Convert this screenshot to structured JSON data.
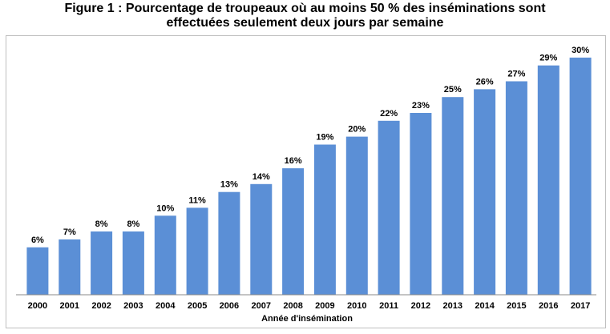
{
  "chart_data": {
    "type": "bar",
    "title_line1": "Figure 1 : Pourcentage de troupeaux où au moins 50 % des inséminations sont",
    "title_line2": "effectuées seulement deux jours par semaine",
    "xlabel": "Année d'insémination",
    "ylabel": "",
    "ylim": [
      0,
      31
    ],
    "grid": false,
    "bar_color": "#5b8fd6",
    "categories": [
      "2000",
      "2001",
      "2002",
      "2003",
      "2004",
      "2005",
      "2006",
      "2007",
      "2008",
      "2009",
      "2010",
      "2011",
      "2012",
      "2013",
      "2014",
      "2015",
      "2016",
      "2017"
    ],
    "values": [
      6,
      7,
      8,
      8,
      10,
      11,
      13,
      14,
      16,
      19,
      20,
      22,
      23,
      25,
      26,
      27,
      29,
      30
    ],
    "data_labels": [
      "6%",
      "7%",
      "8%",
      "8%",
      "10%",
      "11%",
      "13%",
      "14%",
      "16%",
      "19%",
      "20%",
      "22%",
      "23%",
      "25%",
      "26%",
      "27%",
      "29%",
      "30%"
    ]
  }
}
